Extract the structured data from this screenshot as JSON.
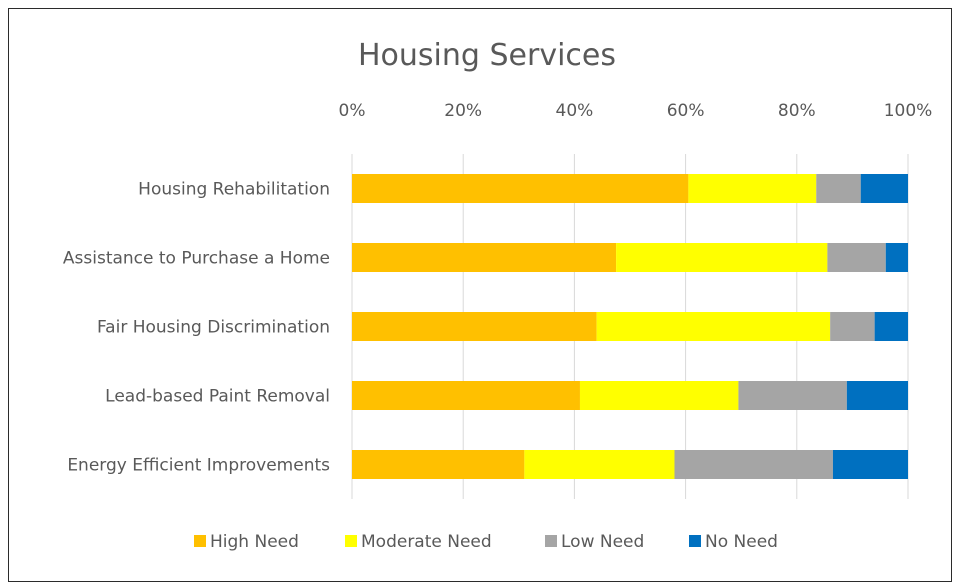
{
  "chart_data": {
    "type": "bar",
    "orientation": "horizontal",
    "stacked": "percent",
    "title": "Housing Services",
    "xlabel": "",
    "ylabel": "",
    "xlim": [
      0,
      100
    ],
    "x_ticks": [
      "0%",
      "20%",
      "40%",
      "60%",
      "80%",
      "100%"
    ],
    "x_tick_values": [
      0,
      20,
      40,
      60,
      80,
      100
    ],
    "axis_position": "top",
    "grid": true,
    "legend_position": "bottom",
    "categories": [
      "Housing Rehabilitation",
      "Assistance to Purchase a Home",
      "Fair Housing Discrimination",
      "Lead-based Paint Removal",
      "Energy Efficient Improvements"
    ],
    "series": [
      {
        "name": "High Need",
        "color": "#FFC000",
        "values": [
          60.5,
          47.5,
          44,
          41,
          31
        ]
      },
      {
        "name": "Moderate Need",
        "color": "#FFFF00",
        "values": [
          23,
          38,
          42,
          28.5,
          27
        ]
      },
      {
        "name": "Low Need",
        "color": "#A5A5A5",
        "values": [
          8,
          10.5,
          8,
          19.5,
          28.5
        ]
      },
      {
        "name": "No Need",
        "color": "#0070C0",
        "values": [
          8.5,
          4,
          6,
          11,
          13.5
        ]
      }
    ]
  }
}
